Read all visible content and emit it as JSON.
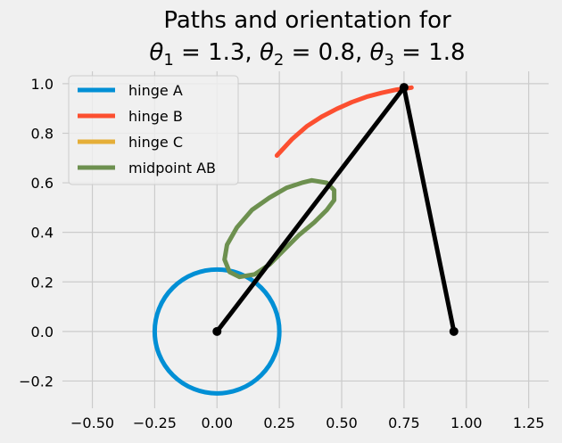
{
  "chart_data": {
    "type": "line",
    "title_line1": "Paths and orientation for",
    "title_line2": {
      "parts": [
        {
          "t": "θ",
          "style": "italic"
        },
        {
          "t": "1",
          "style": "sub"
        },
        {
          "t": " = 1.3, ",
          "style": "normal"
        },
        {
          "t": "θ",
          "style": "italic"
        },
        {
          "t": "2",
          "style": "sub"
        },
        {
          "t": " = 0.8, ",
          "style": "normal"
        },
        {
          "t": "θ",
          "style": "italic"
        },
        {
          "t": "3",
          "style": "sub"
        },
        {
          "t": " = 1.8",
          "style": "normal"
        }
      ]
    },
    "xlim": [
      -0.62,
      1.33
    ],
    "ylim": [
      -0.31,
      1.05
    ],
    "xticks": [
      -0.5,
      -0.25,
      0.0,
      0.25,
      0.5,
      0.75,
      1.0,
      1.25
    ],
    "xtick_labels": [
      "−0.50",
      "−0.25",
      "0.00",
      "0.25",
      "0.50",
      "0.75",
      "1.00",
      "1.25"
    ],
    "yticks": [
      -0.2,
      0.0,
      0.2,
      0.4,
      0.6,
      0.8,
      1.0
    ],
    "ytick_labels": [
      "−0.2",
      "0.0",
      "0.2",
      "0.4",
      "0.6",
      "0.8",
      "1.0"
    ],
    "grid": true,
    "legend_position": "top-left",
    "series": [
      {
        "name": "hinge A",
        "color": "#008fd5",
        "kind": "circle",
        "center": [
          0,
          0
        ],
        "radius": 0.25
      },
      {
        "name": "hinge B",
        "color": "#fc4f30",
        "kind": "polyline",
        "points": [
          [
            0.24,
            0.71
          ],
          [
            0.3,
            0.775
          ],
          [
            0.36,
            0.828
          ],
          [
            0.42,
            0.867
          ],
          [
            0.48,
            0.898
          ],
          [
            0.54,
            0.925
          ],
          [
            0.6,
            0.947
          ],
          [
            0.66,
            0.963
          ],
          [
            0.72,
            0.976
          ],
          [
            0.78,
            0.984
          ]
        ]
      },
      {
        "name": "hinge C",
        "color": "#e5ae38",
        "kind": "polyline",
        "points": [
          [
            0.95,
            0.0
          ]
        ]
      },
      {
        "name": "midpoint AB",
        "color": "#6d904f",
        "kind": "polyline",
        "closed": true,
        "points": [
          [
            0.38,
            0.61
          ],
          [
            0.44,
            0.6
          ],
          [
            0.47,
            0.57
          ],
          [
            0.47,
            0.53
          ],
          [
            0.44,
            0.49
          ],
          [
            0.39,
            0.44
          ],
          [
            0.33,
            0.39
          ],
          [
            0.27,
            0.33
          ],
          [
            0.21,
            0.27
          ],
          [
            0.15,
            0.23
          ],
          [
            0.09,
            0.22
          ],
          [
            0.05,
            0.24
          ],
          [
            0.03,
            0.29
          ],
          [
            0.04,
            0.35
          ],
          [
            0.08,
            0.42
          ],
          [
            0.14,
            0.49
          ],
          [
            0.21,
            0.54
          ],
          [
            0.28,
            0.58
          ],
          [
            0.34,
            0.6
          ],
          [
            0.38,
            0.61
          ]
        ]
      }
    ],
    "linkage": {
      "color": "#000000",
      "points": [
        [
          0.0,
          0.0
        ],
        [
          0.75,
          0.985
        ],
        [
          0.95,
          0.0
        ]
      ]
    }
  }
}
